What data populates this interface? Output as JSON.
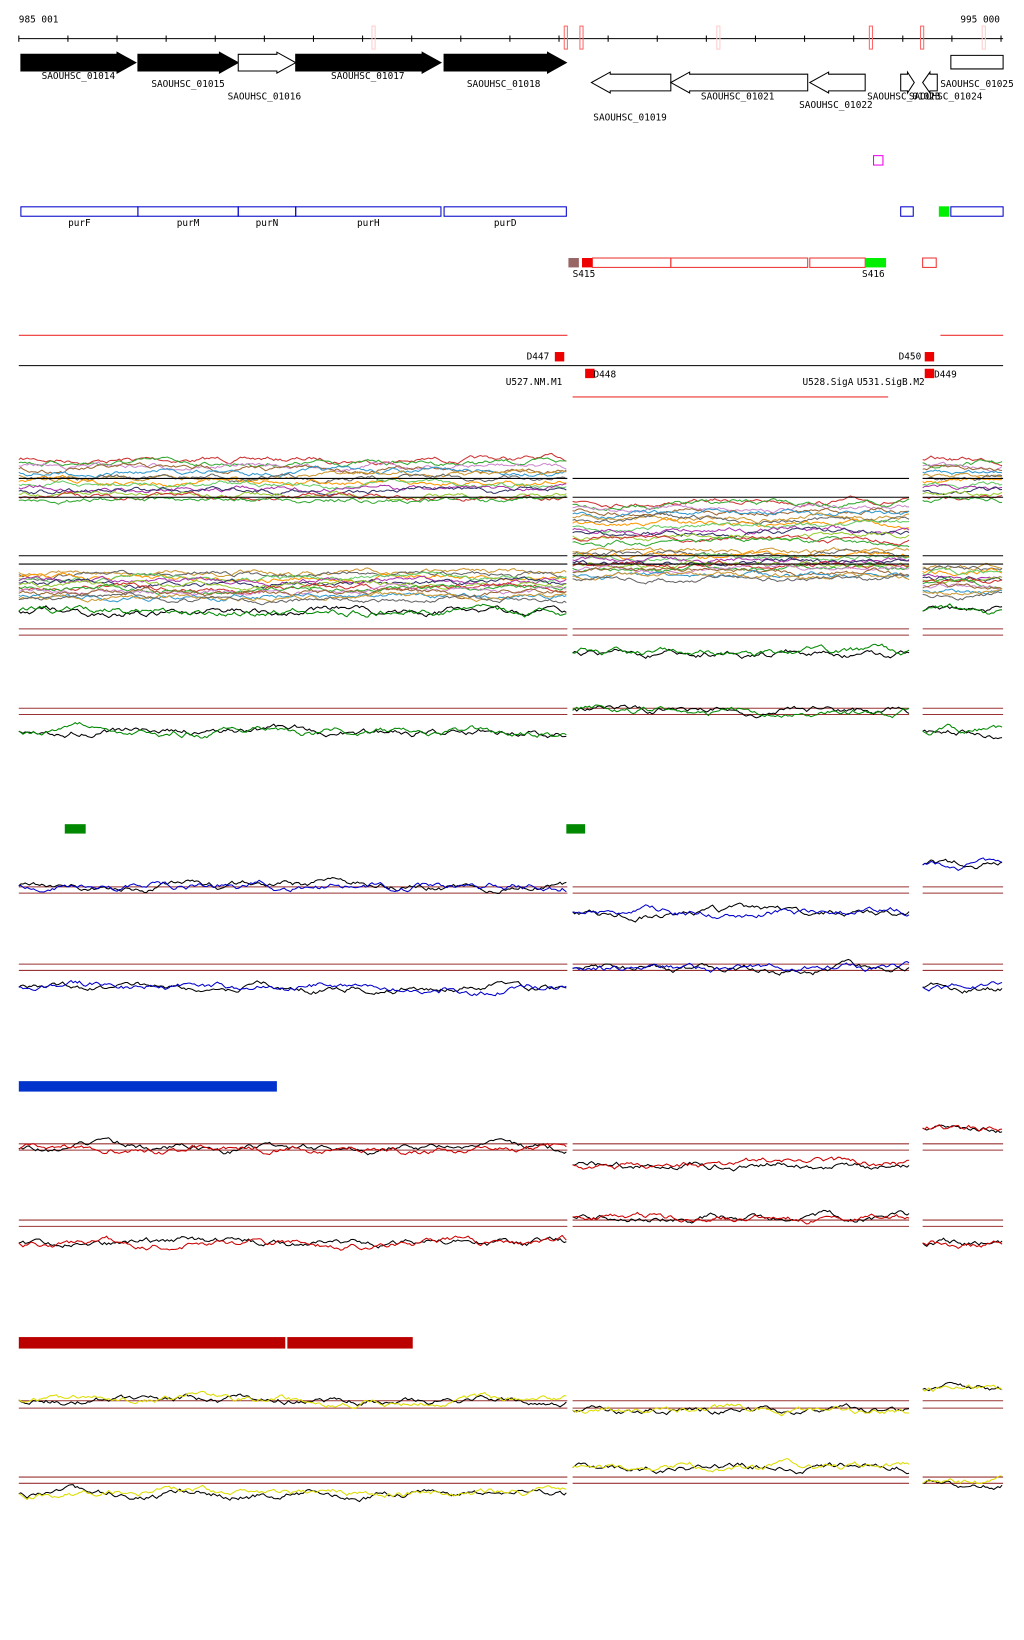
{
  "ruler": {
    "start": "985 001",
    "end": "995 000"
  },
  "genes": [
    "SAOUHSC_01014",
    "SAOUHSC_01015",
    "SAOUHSC_01016",
    "SAOUHSC_01017",
    "SAOUHSC_01018",
    "SAOUHSC_01019",
    "SAOUHSC_01021",
    "SAOUHSC_01022",
    "SAOUHSC_01023",
    "SAOUHSC_01024",
    "SAOUHSC_01025"
  ],
  "operon_genes": [
    "purF",
    "purM",
    "purN",
    "purH",
    "purD"
  ],
  "segments": [
    "S415",
    "S416"
  ],
  "features": [
    "D447",
    "D448",
    "D450",
    "D449",
    "U527.NM.M1",
    "U528.SigA",
    "U531.SigB.M2"
  ]
}
